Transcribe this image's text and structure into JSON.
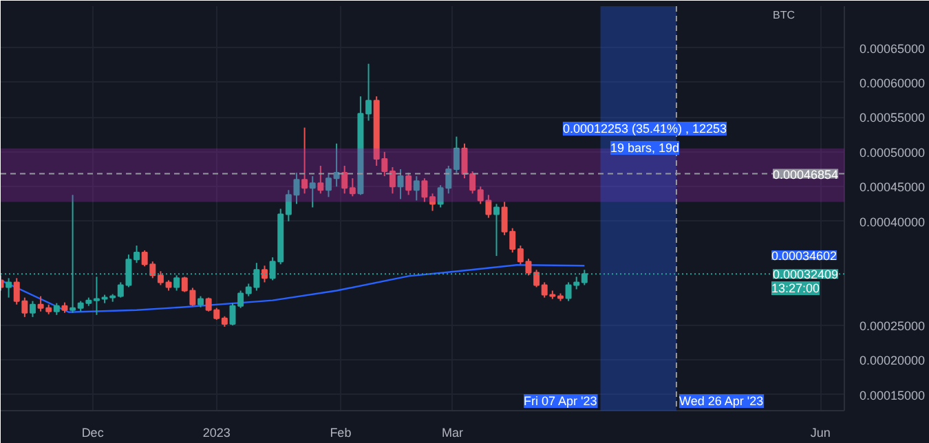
{
  "chart_data": {
    "type": "candlestick",
    "ylabel": "BTC",
    "x": [
      "2022-11-08",
      "2022-11-10",
      "2022-11-12",
      "2022-11-14",
      "2022-11-16",
      "2022-11-18",
      "2022-11-20",
      "2022-11-22",
      "2022-11-24",
      "2022-11-26",
      "2022-11-28",
      "2022-11-30",
      "2022-12-02",
      "2022-12-04",
      "2022-12-06",
      "2022-12-08",
      "2022-12-10",
      "2022-12-12",
      "2022-12-14",
      "2022-12-16",
      "2022-12-18",
      "2022-12-20",
      "2022-12-22",
      "2022-12-24",
      "2022-12-26",
      "2022-12-28",
      "2022-12-30",
      "2023-01-01",
      "2023-01-03",
      "2023-01-05",
      "2023-01-07",
      "2023-01-09",
      "2023-01-11",
      "2023-01-13",
      "2023-01-15",
      "2023-01-17",
      "2023-01-19",
      "2023-01-21",
      "2023-01-23",
      "2023-01-25",
      "2023-01-27",
      "2023-01-29",
      "2023-01-31",
      "2023-02-02",
      "2023-02-04",
      "2023-02-06",
      "2023-02-08",
      "2023-02-10",
      "2023-02-12",
      "2023-02-14",
      "2023-02-16",
      "2023-02-18",
      "2023-02-20",
      "2023-02-22",
      "2023-02-24",
      "2023-02-26",
      "2023-02-28",
      "2023-03-02",
      "2023-03-04",
      "2023-03-06",
      "2023-03-08",
      "2023-03-10",
      "2023-03-12",
      "2023-03-14",
      "2023-03-16",
      "2023-03-18",
      "2023-03-20",
      "2023-03-22",
      "2023-03-24",
      "2023-03-26",
      "2023-03-28",
      "2023-03-30",
      "2023-04-01",
      "2023-04-03"
    ],
    "ohlc": [
      [
        0.000315,
        0.000322,
        0.0003,
        0.000305
      ],
      [
        0.000305,
        0.000318,
        0.00029,
        0.000312
      ],
      [
        0.000312,
        0.000318,
        0.00028,
        0.000285
      ],
      [
        0.000285,
        0.00029,
        0.000262,
        0.000268
      ],
      [
        0.000268,
        0.000285,
        0.000262,
        0.00028
      ],
      [
        0.00028,
        0.000292,
        0.00027,
        0.000275
      ],
      [
        0.000275,
        0.00028,
        0.000266,
        0.00027
      ],
      [
        0.00027,
        0.000282,
        0.000265,
        0.000278
      ],
      [
        0.000278,
        0.000283,
        0.000268,
        0.000272
      ],
      [
        0.000272,
        0.000438,
        0.000268,
        0.000275
      ],
      [
        0.000275,
        0.000285,
        0.00027,
        0.000282
      ],
      [
        0.000282,
        0.00029,
        0.000278,
        0.000286
      ],
      [
        0.000286,
        0.00032,
        0.000265,
        0.000288
      ],
      [
        0.000288,
        0.000294,
        0.000282,
        0.00029
      ],
      [
        0.00029,
        0.000295,
        0.000284,
        0.000292
      ],
      [
        0.000292,
        0.000312,
        0.00029,
        0.000308
      ],
      [
        0.000308,
        0.000352,
        0.000305,
        0.000345
      ],
      [
        0.000345,
        0.000365,
        0.00034,
        0.000355
      ],
      [
        0.000355,
        0.000358,
        0.000335,
        0.000338
      ],
      [
        0.000338,
        0.000342,
        0.000318,
        0.000322
      ],
      [
        0.000322,
        0.000328,
        0.000308,
        0.000312
      ],
      [
        0.000312,
        0.000315,
        0.0003,
        0.000305
      ],
      [
        0.000305,
        0.000322,
        0.0003,
        0.000318
      ],
      [
        0.000318,
        0.00032,
        0.000298,
        0.0003
      ],
      [
        0.0003,
        0.000304,
        0.000278,
        0.00028
      ],
      [
        0.00028,
        0.000292,
        0.000276,
        0.000288
      ],
      [
        0.000288,
        0.00029,
        0.00027,
        0.000272
      ],
      [
        0.000272,
        0.000275,
        0.000258,
        0.00026
      ],
      [
        0.00026,
        0.000263,
        0.000248,
        0.000252
      ],
      [
        0.000252,
        0.000282,
        0.00025,
        0.000278
      ],
      [
        0.000278,
        0.0003,
        0.000275,
        0.000296
      ],
      [
        0.000296,
        0.00031,
        0.000292,
        0.000305
      ],
      [
        0.000305,
        0.00034,
        0.0003,
        0.00033
      ],
      [
        0.00033,
        0.000336,
        0.000312,
        0.000318
      ],
      [
        0.000318,
        0.000348,
        0.000315,
        0.000342
      ],
      [
        0.000342,
        0.000418,
        0.000338,
        0.00041
      ],
      [
        0.00041,
        0.000445,
        0.0004,
        0.000438
      ],
      [
        0.000438,
        0.00047,
        0.000425,
        0.00046
      ],
      [
        0.00046,
        0.000535,
        0.00044,
        0.000448
      ],
      [
        0.000448,
        0.000465,
        0.00042,
        0.000455
      ],
      [
        0.000455,
        0.00048,
        0.00044,
        0.000445
      ],
      [
        0.000445,
        0.00047,
        0.000435,
        0.000462
      ],
      [
        0.000462,
        0.000512,
        0.00045,
        0.00047
      ],
      [
        0.00047,
        0.00048,
        0.00044,
        0.000448
      ],
      [
        0.000448,
        0.000462,
        0.000436,
        0.00044
      ],
      [
        0.00044,
        0.00058,
        0.000438,
        0.000555
      ],
      [
        0.000555,
        0.000627,
        0.000545,
        0.000574
      ],
      [
        0.000574,
        0.00058,
        0.00048,
        0.00049
      ],
      [
        0.00049,
        0.0005,
        0.000465,
        0.000472
      ],
      [
        0.000472,
        0.000478,
        0.00044,
        0.00045
      ],
      [
        0.00045,
        0.000475,
        0.000432,
        0.000465
      ],
      [
        0.000465,
        0.00047,
        0.000438,
        0.000445
      ],
      [
        0.000445,
        0.000465,
        0.00043,
        0.000458
      ],
      [
        0.000458,
        0.000462,
        0.000428,
        0.000435
      ],
      [
        0.000435,
        0.00044,
        0.000415,
        0.000425
      ],
      [
        0.000425,
        0.000452,
        0.00042,
        0.000448
      ],
      [
        0.000448,
        0.00048,
        0.00044,
        0.000475
      ],
      [
        0.000475,
        0.000522,
        0.00047,
        0.000505
      ],
      [
        0.000505,
        0.000512,
        0.000462,
        0.000468
      ],
      [
        0.000468,
        0.000472,
        0.00044,
        0.000445
      ],
      [
        0.000445,
        0.00045,
        0.000425,
        0.00043
      ],
      [
        0.00043,
        0.000438,
        0.000405,
        0.00041
      ],
      [
        0.00041,
        0.000425,
        0.00035,
        0.00042
      ],
      [
        0.00042,
        0.000428,
        0.00038,
        0.000385
      ],
      [
        0.000385,
        0.00039,
        0.000355,
        0.00036
      ],
      [
        0.00036,
        0.000365,
        0.000338,
        0.000342
      ],
      [
        0.000342,
        0.000346,
        0.000322,
        0.000326
      ],
      [
        0.000326,
        0.00033,
        0.000305,
        0.000308
      ],
      [
        0.000308,
        0.000312,
        0.00029,
        0.000294
      ],
      [
        0.000294,
        0.0003,
        0.000288,
        0.000292
      ],
      [
        0.000292,
        0.000296,
        0.000285,
        0.000289
      ],
      [
        0.000289,
        0.000312,
        0.000285,
        0.000308
      ],
      [
        0.000308,
        0.00032,
        0.000302,
        0.000312
      ],
      [
        0.000312,
        0.00033,
        0.000308,
        0.000324
      ]
    ],
    "colors": [
      "#ef5350",
      "#26a69a",
      "#ef5350",
      "#ef5350",
      "#26a69a",
      "#ef5350",
      "#ef5350",
      "#26a69a",
      "#ef5350",
      "#26a69a",
      "#26a69a",
      "#26a69a",
      "#26a69a",
      "#26a69a",
      "#26a69a",
      "#26a69a",
      "#26a69a",
      "#26a69a",
      "#ef5350",
      "#ef5350",
      "#ef5350",
      "#ef5350",
      "#26a69a",
      "#ef5350",
      "#ef5350",
      "#26a69a",
      "#ef5350",
      "#ef5350",
      "#ef5350",
      "#26a69a",
      "#26a69a",
      "#26a69a",
      "#26a69a",
      "#ef5350",
      "#26a69a",
      "#26a69a",
      "#26a69a",
      "#26a69a",
      "#ef5350",
      "#26a69a",
      "#ef5350",
      "#26a69a",
      "#26a69a",
      "#ef5350",
      "#ef5350",
      "#26a69a",
      "#26a69a",
      "#ef5350",
      "#ef5350",
      "#ef5350",
      "#26a69a",
      "#ef5350",
      "#26a69a",
      "#ef5350",
      "#ef5350",
      "#26a69a",
      "#26a69a",
      "#26a69a",
      "#ef5350",
      "#ef5350",
      "#ef5350",
      "#ef5350",
      "#26a69a",
      "#ef5350",
      "#ef5350",
      "#ef5350",
      "#ef5350",
      "#ef5350",
      "#ef5350",
      "#ef5350",
      "#ef5350",
      "#26a69a",
      "#26a69a",
      "#26a69a"
    ],
    "series": [
      {
        "type": "line",
        "color": "#2962ff",
        "x": [
          "2022-11-08",
          "2022-11-25",
          "2022-12-12",
          "2022-12-23",
          "2023-01-15",
          "2023-01-31",
          "2023-02-18",
          "2023-03-04",
          "2023-03-17",
          "2023-04-03"
        ],
        "values": [
          0.000315,
          0.000269,
          0.000272,
          0.000276,
          0.000286,
          0.0003,
          0.000321,
          0.000329,
          0.000337,
          0.000336
        ]
      }
    ],
    "xlim": [
      "2022-11-08",
      "2023-06-07"
    ],
    "xticks": [
      {
        "value": "2022-12-01",
        "label": "Dec"
      },
      {
        "value": "2023-01-01",
        "label": "2023"
      },
      {
        "value": "2023-02-01",
        "label": "Feb"
      },
      {
        "value": "2023-03-01",
        "label": "Mar"
      },
      {
        "value": "2023-06-01",
        "label": "Jun"
      }
    ],
    "ylim": [
      0.000127,
      0.00071
    ],
    "yticks": [
      {
        "value": 0.00015,
        "label": "0.00015000"
      },
      {
        "value": 0.0002,
        "label": "0.00020000"
      },
      {
        "value": 0.00025,
        "label": "0.00025000"
      },
      {
        "value": 0.0004,
        "label": "0.00040000"
      },
      {
        "value": 0.00045,
        "label": "0.00045000"
      },
      {
        "value": 0.0005,
        "label": "0.00050000"
      },
      {
        "value": 0.00055,
        "label": "0.00055000"
      },
      {
        "value": 0.0006,
        "label": "0.00060000"
      },
      {
        "value": 0.00065,
        "label": "0.00065000"
      }
    ],
    "ref_lines": [
      {
        "axis": "y",
        "value": 0.00046854,
        "label": "0.00046854",
        "color": "#9598a1",
        "line_style": "dashed"
      },
      {
        "axis": "y",
        "value": 0.00032409,
        "label": "0.00032409",
        "color": "#26a69a",
        "line_style": "dotted"
      },
      {
        "axis": "x",
        "value": "2023-04-26",
        "color": "#9598a1",
        "line_style": "dashed"
      }
    ],
    "bands": [
      {
        "axis": "y",
        "from": 0.000428,
        "to": 0.000505,
        "color": "#9c27b0"
      },
      {
        "axis": "x",
        "from": "2023-04-07",
        "to": "2023-04-26",
        "color": "#2962ff"
      }
    ],
    "annotations": [
      "0.00012253 (35.41%) , 12253",
      "19 bars, 19d",
      "0.00034602",
      "13:27:00",
      {
        "text": "Fri 07 Apr '23",
        "x": "2023-04-07"
      },
      {
        "text": "Wed 26 Apr '23",
        "x": "2023-04-26"
      }
    ],
    "grid": true
  }
}
